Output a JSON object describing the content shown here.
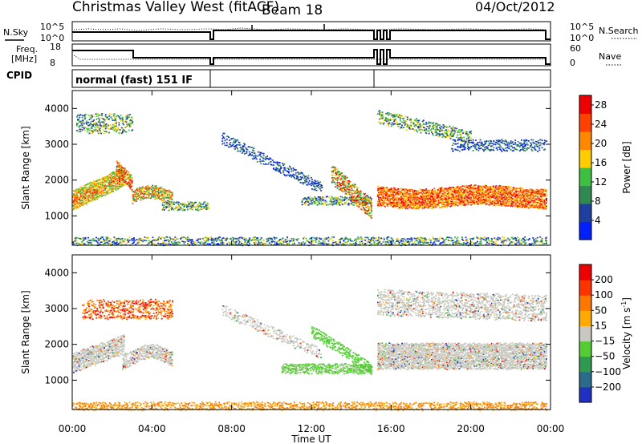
{
  "header": {
    "title": "Christmas Valley West (fitACF)",
    "beam": "Beam 18",
    "date": "04/Oct/2012"
  },
  "panels": {
    "nsky_label": "N.Sky",
    "nsearch_label": "N.Search",
    "freq_label_1": "Freq.",
    "freq_label_2": "[MHz]",
    "nave_label": "Nave",
    "cpid_label": "CPID",
    "cpid_value": "normal (fast) 151 IF",
    "noise_ticks": [
      "10^5",
      "10^0"
    ],
    "freq_ticks": [
      "18",
      "8"
    ],
    "nave_ticks": [
      "60",
      "0"
    ]
  },
  "chart_data": [
    {
      "type": "heatmap",
      "title": "",
      "xlabel": "Time UT",
      "ylabel": "Slant Range [km]",
      "xlim": [
        0,
        24
      ],
      "ylim": [
        180,
        4500
      ],
      "x_ticks": [
        "00:00",
        "04:00",
        "08:00",
        "12:00",
        "16:00",
        "20:00",
        "00:00"
      ],
      "y_ticks": [
        1000,
        2000,
        3000,
        4000
      ],
      "colorbar": {
        "label": "Power [dB]",
        "ticks": [
          4,
          8,
          12,
          16,
          20,
          24,
          28
        ],
        "range": [
          0,
          30
        ],
        "colors": [
          "#0020ff",
          "#1f3fa0",
          "#2f8a4f",
          "#3fbf3f",
          "#ffcc00",
          "#ff8800",
          "#ff4000",
          "#ee0000"
        ]
      }
    },
    {
      "type": "heatmap",
      "title": "",
      "xlabel": "Time UT",
      "ylabel": "Slant Range [km]",
      "xlim": [
        0,
        24
      ],
      "ylim": [
        180,
        4500
      ],
      "x_ticks": [
        "00:00",
        "04:00",
        "08:00",
        "12:00",
        "16:00",
        "20:00",
        "00:00"
      ],
      "y_ticks": [
        1000,
        2000,
        3000,
        4000
      ],
      "colorbar": {
        "label": "Velocity [m s",
        "label_sup": "-1",
        "label_end": "]",
        "ticks": [
          "200",
          "100",
          "50",
          "15",
          "−15",
          "−50",
          "−100",
          "−200"
        ],
        "colors": [
          "#2030c0",
          "#2a6a8a",
          "#2f9a4f",
          "#55cc33",
          "#c8c8c0",
          "#ffaa00",
          "#ff7700",
          "#ff3300",
          "#ee0000"
        ]
      }
    }
  ]
}
